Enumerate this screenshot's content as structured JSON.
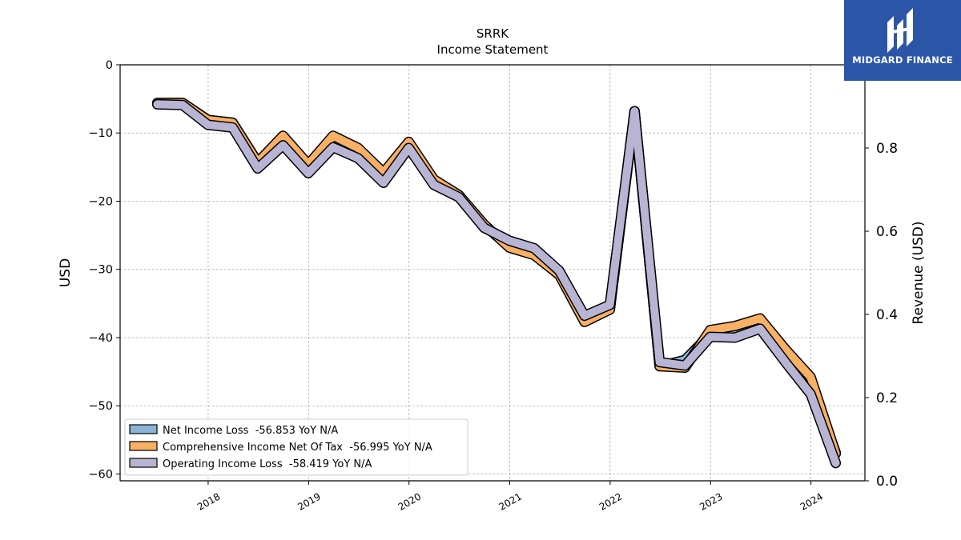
{
  "colors": {
    "net_income": "#8db4d6",
    "comprehensive_income": "#f8b064",
    "operating_income": "#b8b4d4",
    "logo_bg": "#2b56a8"
  },
  "logo": {
    "text": "MIDGARD FINANCE",
    "icon": "midgard-logo-icon"
  },
  "chart_data": {
    "type": "line",
    "title": "SRRK",
    "subtitle": "Income Statement",
    "ylabel": "USD",
    "ylabel_right": "Revenue (USD)",
    "ylim": [
      -61,
      0
    ],
    "ylim_right": [
      0.0,
      1.0
    ],
    "yticks": [
      0,
      -10,
      -20,
      -30,
      -40,
      -50,
      -60
    ],
    "yticks_labels": [
      "0",
      "−10",
      "−20",
      "−30",
      "−40",
      "−50",
      "−60"
    ],
    "yticks_right": [
      0.0,
      0.2,
      0.4,
      0.6,
      0.8
    ],
    "yticks_right_labels": [
      "0.0",
      "0.2",
      "0.4",
      "0.6",
      "0.8"
    ],
    "xticks": [
      "2018-01-01",
      "2019-01-01",
      "2020-01-01",
      "2021-01-01",
      "2022-01-01",
      "2023-01-01",
      "2024-01-01"
    ],
    "xticks_labels": [
      "2018",
      "2019",
      "2020",
      "2021",
      "2022",
      "2023",
      "2024"
    ],
    "xlim": [
      "2017-02-15",
      "2024-07-15"
    ],
    "grid": true,
    "legend_position": "bottom-left",
    "x": [
      "2017-06-30",
      "2017-09-30",
      "2017-12-31",
      "2018-03-31",
      "2018-06-30",
      "2018-09-30",
      "2018-12-31",
      "2019-03-31",
      "2019-06-30",
      "2019-09-30",
      "2019-12-31",
      "2020-03-31",
      "2020-06-30",
      "2020-09-30",
      "2020-12-31",
      "2021-03-31",
      "2021-06-30",
      "2021-09-30",
      "2021-12-31",
      "2022-03-31",
      "2022-06-30",
      "2022-09-30",
      "2022-12-31",
      "2023-03-31",
      "2023-06-30",
      "2023-09-30",
      "2023-12-31",
      "2024-03-31"
    ],
    "series": [
      {
        "name": "Net Income Loss",
        "legend": "Net Income Loss  -56.853 YoY N/A",
        "color_key": "net_income",
        "values": [
          -5.6,
          -5.6,
          -8.1,
          -8.5,
          -14.3,
          -10.6,
          -14.8,
          -10.6,
          -12.4,
          -16.0,
          -11.5,
          -17.0,
          -19.2,
          -23.5,
          -26.7,
          -27.8,
          -30.7,
          -37.6,
          -35.8,
          -6.8,
          -44.2,
          -43.3,
          -39.5,
          -39.3,
          -37.9,
          -42.5,
          -46.8,
          -56.9
        ]
      },
      {
        "name": "Comprehensive Income Net Of Tax",
        "legend": "Comprehensive Income Net Of Tax  -56.995 YoY N/A",
        "color_key": "comprehensive_income",
        "values": [
          -5.6,
          -5.6,
          -8.1,
          -8.5,
          -14.3,
          -10.4,
          -14.6,
          -10.4,
          -12.2,
          -15.8,
          -11.3,
          -16.8,
          -19.1,
          -23.4,
          -26.8,
          -27.9,
          -30.8,
          -37.7,
          -35.9,
          -6.8,
          -44.2,
          -44.4,
          -38.9,
          -38.3,
          -37.2,
          -41.7,
          -45.8,
          -57.0
        ]
      },
      {
        "name": "Operating Income Loss",
        "legend": "Operating Income Loss  -58.419 YoY N/A",
        "color_key": "operating_income",
        "values": [
          -5.8,
          -5.9,
          -8.8,
          -9.2,
          -15.2,
          -11.8,
          -15.9,
          -12.1,
          -13.7,
          -17.3,
          -12.2,
          -17.6,
          -19.4,
          -23.9,
          -25.8,
          -26.9,
          -30.2,
          -36.8,
          -35.2,
          -6.8,
          -43.6,
          -44.1,
          -39.9,
          -40.0,
          -38.7,
          -43.6,
          -48.3,
          -58.4
        ]
      }
    ]
  }
}
